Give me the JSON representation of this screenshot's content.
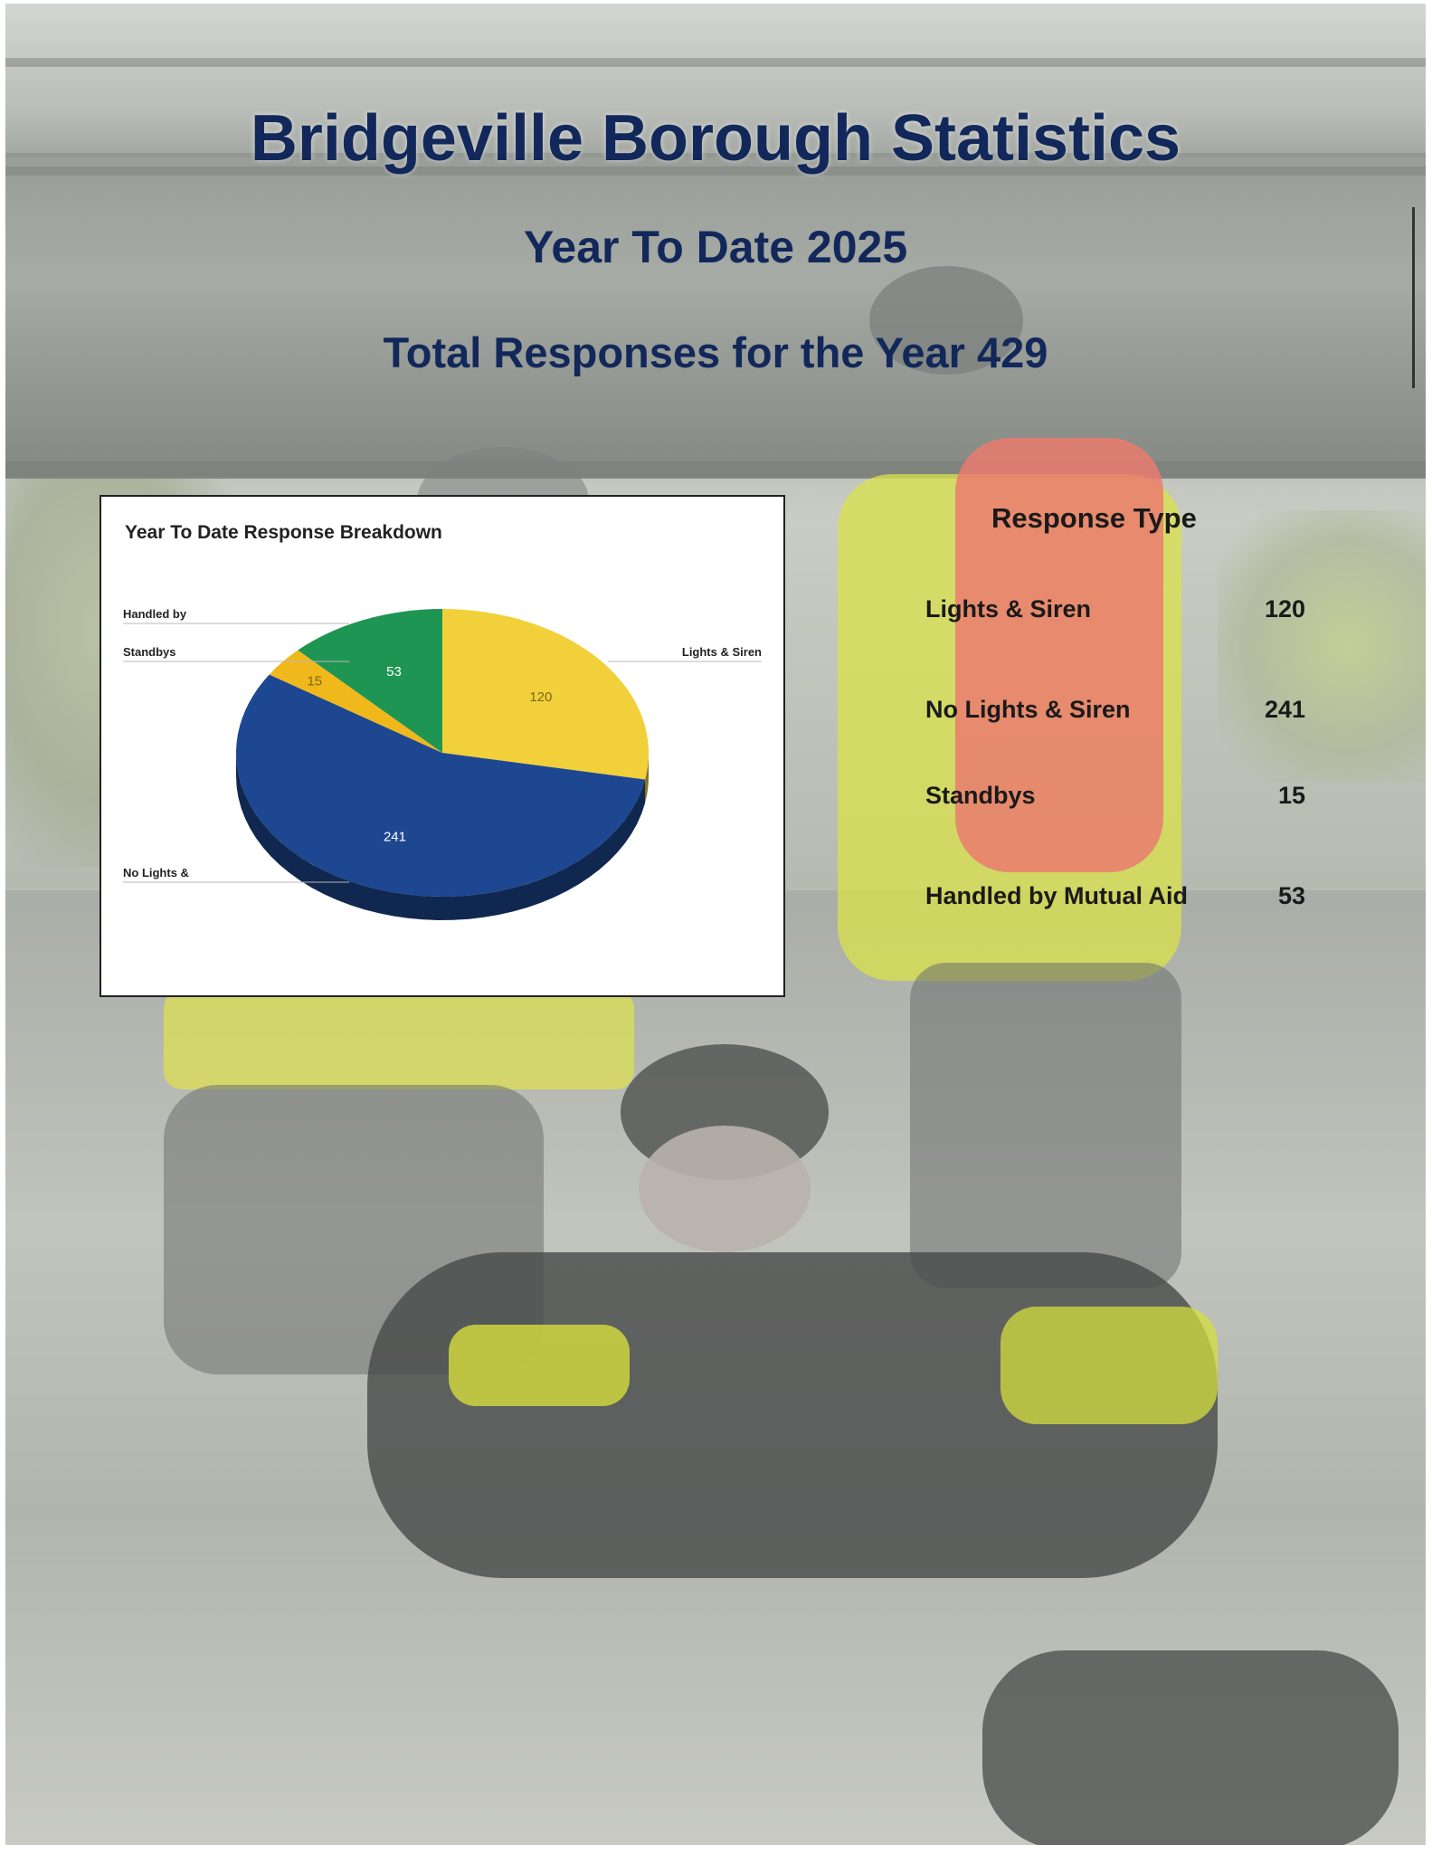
{
  "header": {
    "title": "Bridgeville Borough Statistics",
    "subtitle": "Year To Date 2025",
    "total_line": "Total Responses for the Year 429"
  },
  "chart_data": {
    "type": "pie",
    "title": "Year To Date Response Breakdown",
    "slices": [
      {
        "label": "Lights & Siren",
        "value": 120,
        "color": "#f2d03a"
      },
      {
        "label": "No Lights &",
        "value": 241,
        "color": "#1d4790"
      },
      {
        "label": "Standbys",
        "value": 15,
        "color": "#f0b81a"
      },
      {
        "label": "Handled by",
        "value": 53,
        "color": "#1f9553"
      }
    ]
  },
  "response_table": {
    "header": "Response Type",
    "rows": [
      {
        "label": "Lights & Siren",
        "value": "120"
      },
      {
        "label": "No Lights & Siren",
        "value": "241"
      },
      {
        "label": "Standbys",
        "value": "15"
      },
      {
        "label": "Handled by Mutual Aid",
        "value": "53"
      }
    ]
  }
}
